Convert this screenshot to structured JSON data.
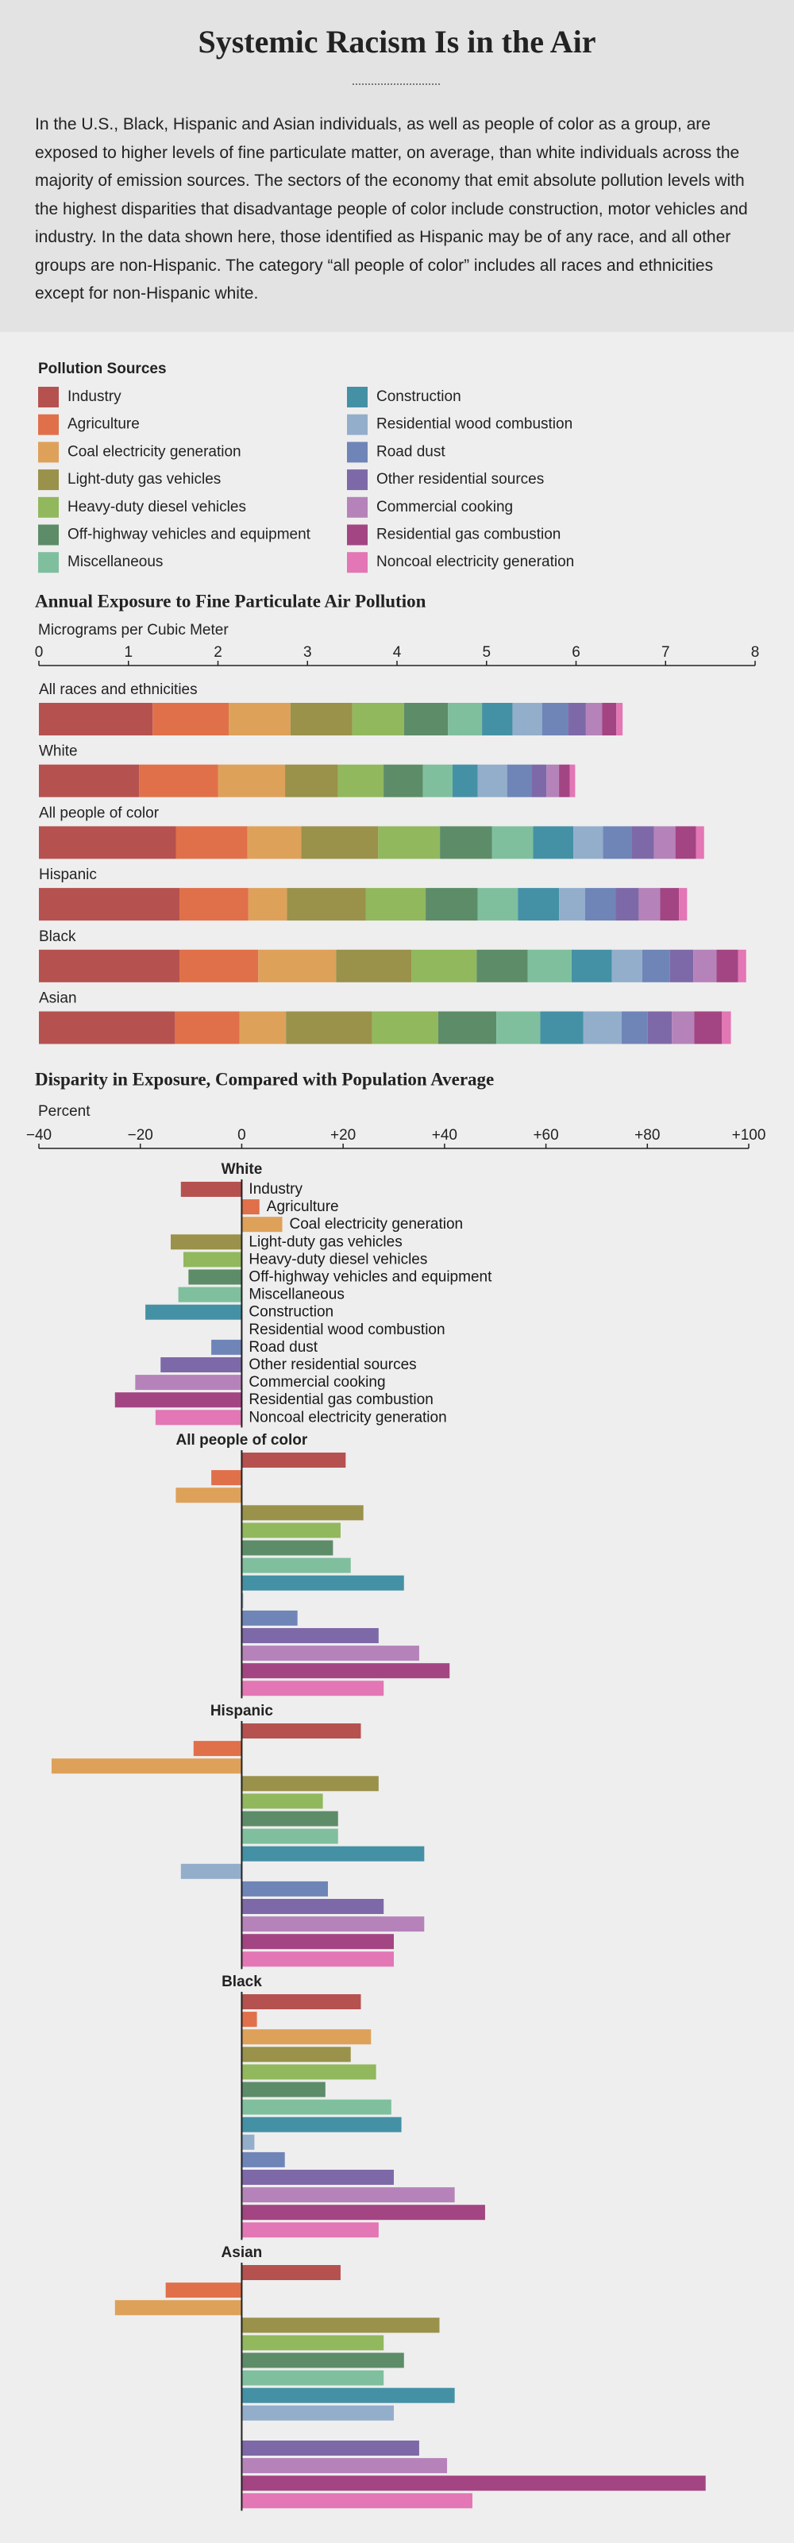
{
  "header": {
    "title": "Systemic Racism Is in the Air",
    "intro": "In the U.S., Black, Hispanic and Asian individuals, as well as people of color as a group, are exposed to higher levels of fine particulate matter, on average, than white individuals across the majority of emission sources. The sectors of the economy that emit absolute pollution levels with the highest disparities that disadvantage people of color include construction, motor vehicles and industry. In the data shown here, those identified as Hispanic may be of any race, and all other groups are non-Hispanic. The category “all people of color” includes all races and ethnicities except for non-Hispanic white."
  },
  "chart_data": [
    {
      "type": "stacked-bar",
      "title": "Annual Exposure to Fine Particulate Air Pollution",
      "axis_label": "Micrograms per Cubic Meter",
      "legend_title": "Pollution Sources",
      "categories": [
        "All races and ethnicities",
        "White",
        "All people of color",
        "Hispanic",
        "Black",
        "Asian"
      ],
      "xlim": [
        0,
        8
      ],
      "xticks": [
        0,
        1,
        2,
        3,
        4,
        5,
        6,
        7,
        8
      ],
      "series": [
        {
          "name": "Industry",
          "color": "#b5524f",
          "values": [
            1.27,
            1.12,
            1.53,
            1.57,
            1.57,
            1.52
          ]
        },
        {
          "name": "Agriculture",
          "color": "#e0704a",
          "values": [
            0.85,
            0.88,
            0.8,
            0.77,
            0.88,
            0.72
          ]
        },
        {
          "name": "Coal electricity generation",
          "color": "#dea15a",
          "values": [
            0.69,
            0.75,
            0.6,
            0.43,
            0.87,
            0.52
          ]
        },
        {
          "name": "Light-duty gas vehicles",
          "color": "#9a914b",
          "values": [
            0.69,
            0.59,
            0.86,
            0.88,
            0.84,
            0.96
          ]
        },
        {
          "name": "Heavy-duty diesel vehicles",
          "color": "#91b85d",
          "values": [
            0.58,
            0.51,
            0.69,
            0.67,
            0.73,
            0.74
          ]
        },
        {
          "name": "Off-highway vehicles and equipment",
          "color": "#5d8c68",
          "values": [
            0.49,
            0.44,
            0.58,
            0.58,
            0.57,
            0.65
          ]
        },
        {
          "name": "Miscellaneous",
          "color": "#7fbf9d",
          "values": [
            0.38,
            0.33,
            0.46,
            0.45,
            0.49,
            0.49
          ]
        },
        {
          "name": "Construction",
          "color": "#4491a5",
          "values": [
            0.34,
            0.28,
            0.45,
            0.46,
            0.45,
            0.48
          ]
        },
        {
          "name": "Residential wood combustion",
          "color": "#93aecb",
          "values": [
            0.33,
            0.33,
            0.33,
            0.29,
            0.34,
            0.43
          ]
        },
        {
          "name": "Road dust",
          "color": "#6f85b8",
          "values": [
            0.29,
            0.27,
            0.32,
            0.34,
            0.31,
            0.29
          ]
        },
        {
          "name": "Other residential sources",
          "color": "#7e69a8",
          "values": [
            0.2,
            0.17,
            0.25,
            0.26,
            0.26,
            0.27
          ]
        },
        {
          "name": "Commercial cooking",
          "color": "#b583b9",
          "values": [
            0.18,
            0.14,
            0.24,
            0.24,
            0.26,
            0.25
          ]
        },
        {
          "name": "Residential gas combustion",
          "color": "#a34583",
          "values": [
            0.16,
            0.12,
            0.23,
            0.21,
            0.24,
            0.31
          ]
        },
        {
          "name": "Noncoal electricity generation",
          "color": "#e376b5",
          "values": [
            0.07,
            0.06,
            0.09,
            0.09,
            0.09,
            0.1
          ]
        }
      ]
    },
    {
      "type": "diverging-bar",
      "title": "Disparity in Exposure, Compared with Population Average",
      "axis_label": "Percent",
      "xlim": [
        -40,
        100
      ],
      "xticks": [
        {
          "value": -40,
          "label": "−40"
        },
        {
          "value": -20,
          "label": "−20"
        },
        0,
        {
          "value": 20,
          "label": "+20"
        },
        {
          "value": 40,
          "label": "+40"
        },
        {
          "value": 60,
          "label": "+60"
        },
        {
          "value": 80,
          "label": "+80"
        },
        {
          "value": 100,
          "label": "+100"
        }
      ],
      "groups": [
        {
          "name": "White",
          "values": [
            -12,
            3.5,
            8,
            -14,
            -11.5,
            -10.5,
            -12.5,
            -19,
            0,
            -6,
            -16,
            -21,
            -25,
            -17
          ]
        },
        {
          "name": "All people of color",
          "values": [
            20.5,
            -6,
            -13,
            24,
            19.5,
            18,
            21.5,
            32,
            0.3,
            11,
            27,
            35,
            41,
            28
          ]
        },
        {
          "name": "Hispanic",
          "values": [
            23.5,
            -9.5,
            -37.5,
            27,
            16,
            19,
            19,
            36,
            -12,
            17,
            28,
            36,
            30,
            30
          ]
        },
        {
          "name": "Black",
          "values": [
            23.5,
            3,
            25.5,
            21.5,
            26.5,
            16.5,
            29.5,
            31.5,
            2.5,
            8.5,
            30,
            42,
            48,
            27
          ]
        },
        {
          "name": "Asian",
          "values": [
            19.5,
            -15,
            -25,
            39,
            28,
            32,
            28,
            42,
            30,
            0,
            35,
            40.5,
            91.5,
            45.5
          ]
        }
      ]
    }
  ]
}
